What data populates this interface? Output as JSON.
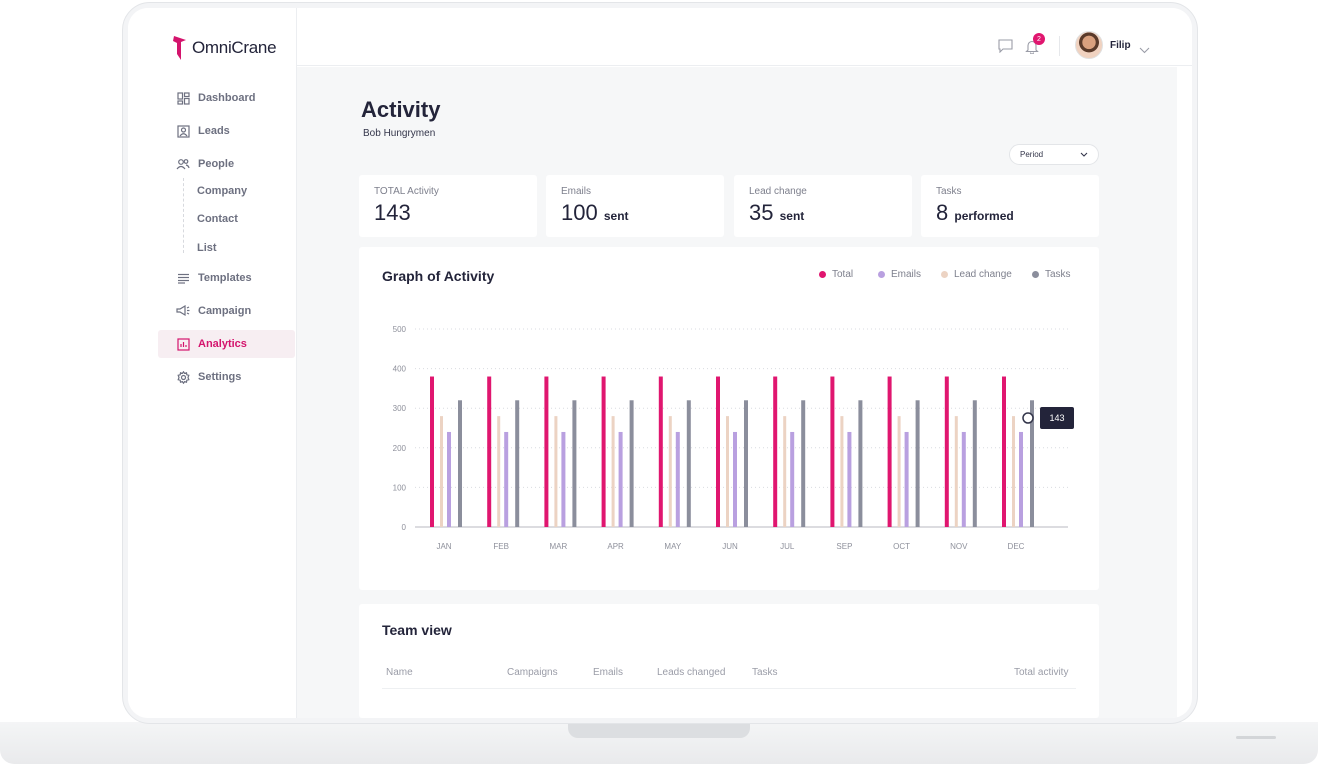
{
  "app": {
    "logo": "OmniCrane",
    "brand_color": "#d4146d"
  },
  "sidebar": {
    "items": [
      {
        "label": "Dashboard",
        "icon": "dashboard-icon"
      },
      {
        "label": "Leads",
        "icon": "leads-icon"
      },
      {
        "label": "People",
        "icon": "people-icon"
      },
      {
        "label": "Templates",
        "icon": "templates-icon"
      },
      {
        "label": "Campaign",
        "icon": "campaign-icon"
      },
      {
        "label": "Analytics",
        "icon": "analytics-icon",
        "active": true
      },
      {
        "label": "Settings",
        "icon": "gear-icon"
      }
    ],
    "people_sub": [
      "Company",
      "Contact",
      "List"
    ]
  },
  "topbar": {
    "notification_count": "2",
    "user_name": "Filip"
  },
  "page": {
    "title": "Activity",
    "subtitle": "Bob Hungrymen",
    "period_label": "Period"
  },
  "stats": [
    {
      "label": "TOTAL Activity",
      "value": "143",
      "unit": ""
    },
    {
      "label": "Emails",
      "value": "100",
      "unit": "sent"
    },
    {
      "label": "Lead change",
      "value": "35",
      "unit": "sent"
    },
    {
      "label": "Tasks",
      "value": "8",
      "unit": "performed"
    }
  ],
  "graph": {
    "title": "Graph of Activity",
    "tooltip": "143"
  },
  "chart_data": {
    "type": "bar",
    "categories": [
      "JAN",
      "FEB",
      "MAR",
      "APR",
      "MAY",
      "JUN",
      "JUL",
      "SEP",
      "OCT",
      "NOV",
      "DEC"
    ],
    "ylim": [
      0,
      500
    ],
    "yticks": [
      "0",
      "100",
      "200",
      "300",
      "400",
      "500"
    ],
    "grid": true,
    "legend_position": "top-right",
    "series": [
      {
        "name": "Total",
        "color": "#e0166f",
        "values": [
          380,
          380,
          380,
          380,
          380,
          380,
          380,
          380,
          380,
          380,
          380
        ]
      },
      {
        "name": "Lead change",
        "color": "#ecd3c3",
        "values": [
          280,
          280,
          280,
          280,
          280,
          280,
          280,
          280,
          280,
          280,
          280
        ]
      },
      {
        "name": "Emails",
        "color": "#b9a0e0",
        "values": [
          240,
          240,
          240,
          240,
          240,
          240,
          240,
          240,
          240,
          240,
          240
        ]
      },
      {
        "name": "Tasks",
        "color": "#8b8e9c",
        "values": [
          320,
          320,
          320,
          320,
          320,
          320,
          320,
          320,
          320,
          320,
          320
        ]
      }
    ],
    "legend_order": [
      "Total",
      "Emails",
      "Lead change",
      "Tasks"
    ]
  },
  "team": {
    "title": "Team view",
    "columns": [
      "Name",
      "Campaigns",
      "Emails",
      "Leads changed",
      "Tasks",
      "Total activity"
    ]
  }
}
